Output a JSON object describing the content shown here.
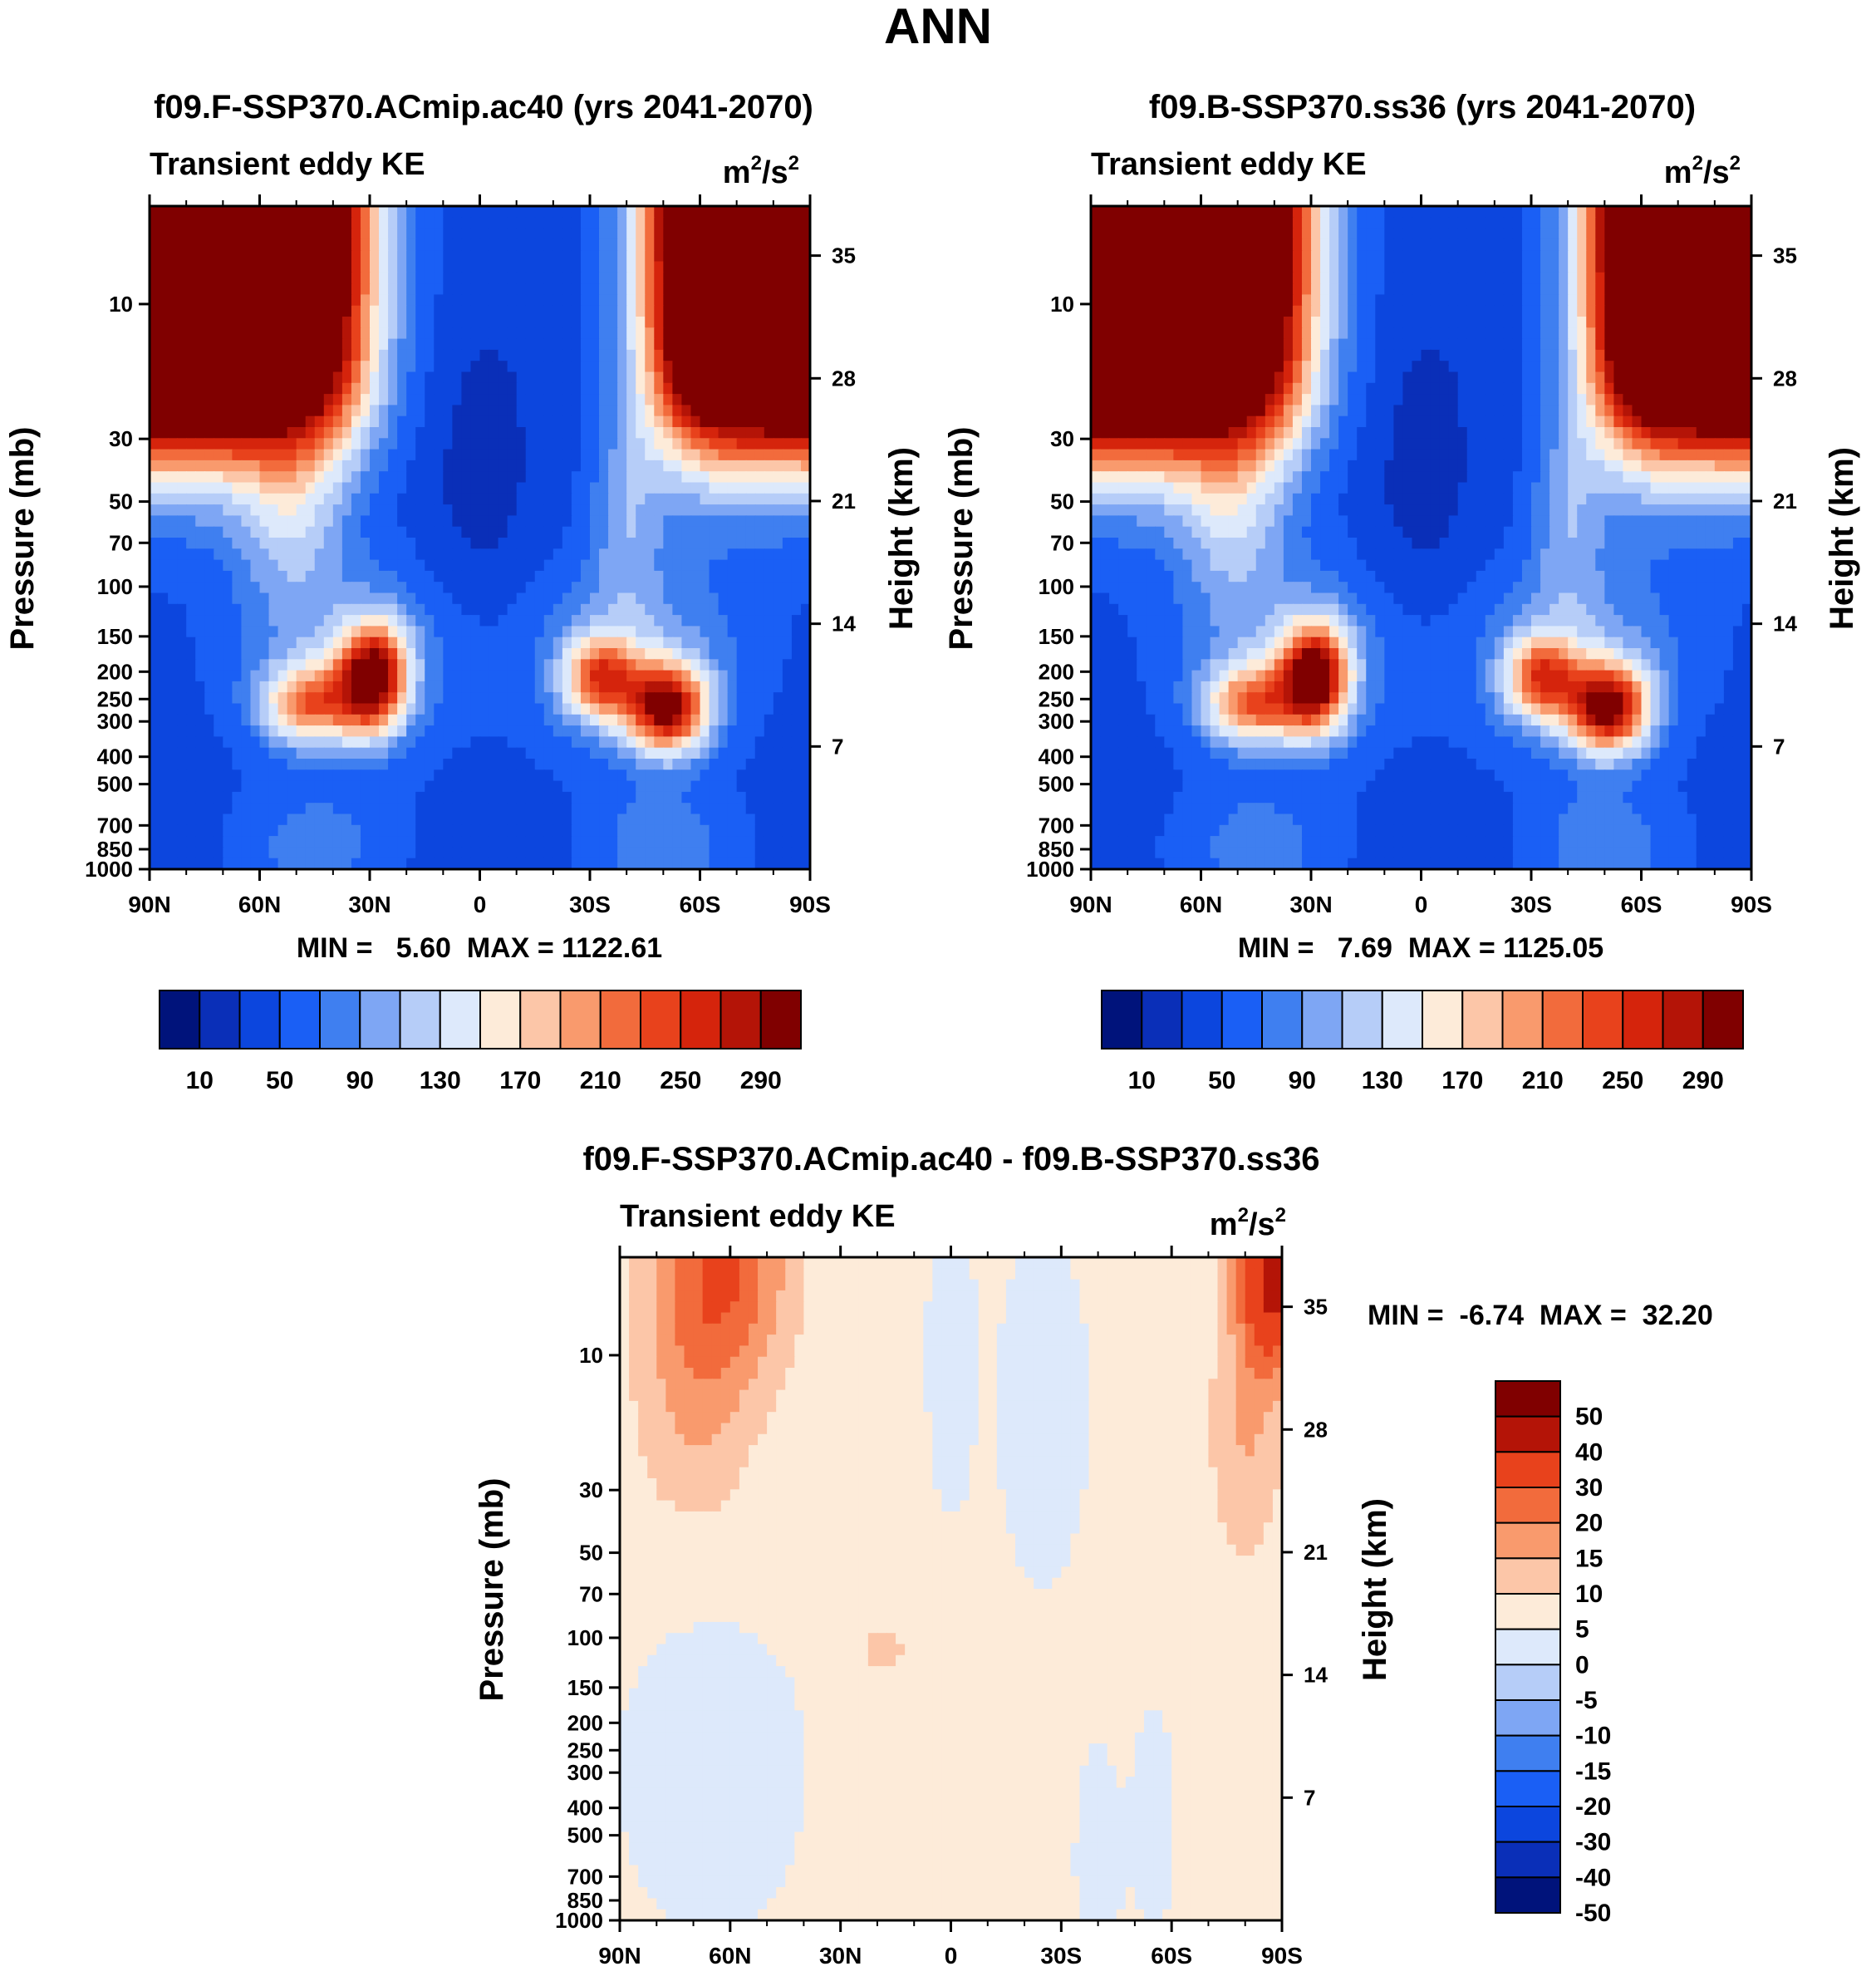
{
  "main_title": "ANN",
  "colors": {
    "seq": [
      "#00137b",
      "#0a2fb8",
      "#0c46de",
      "#1a5ff5",
      "#3f7ff0",
      "#7ea6f4",
      "#b6cdf8",
      "#dde9fb",
      "#fdebd9",
      "#fcc6a8",
      "#f99a6d",
      "#f26b3c",
      "#e8421c",
      "#d5240c",
      "#b41407",
      "#800000"
    ],
    "diff": [
      "#00137b",
      "#0a2fb8",
      "#0c46de",
      "#1a5ff5",
      "#3f7ff0",
      "#7ea6f4",
      "#b6cdf8",
      "#dde9fb",
      "#fdebd9",
      "#fcc6a8",
      "#f99a6d",
      "#f26b3c",
      "#e8421c",
      "#b41407",
      "#800000"
    ]
  },
  "chart_data": [
    {
      "type": "heatmap",
      "id": "left",
      "title": "f09.F-SSP370.ACmip.ac40 (yrs 2041-2070)",
      "left_label": "Transient eddy KE",
      "units_base": "m",
      "units_mid": "/s",
      "units_sup": "2",
      "ylabel": "Pressure (mb)",
      "ylabel_right": "Height (km)",
      "x_ticks": [
        "90N",
        "60N",
        "30N",
        "0",
        "30S",
        "60S",
        "90S"
      ],
      "y_ticks": [
        "10",
        "30",
        "50",
        "70",
        "100",
        "150",
        "200",
        "250",
        "300",
        "400",
        "500",
        "700",
        "850",
        "1000"
      ],
      "yr_ticks": [
        "35",
        "28",
        "21",
        "14",
        "7"
      ],
      "stats": "MIN =   5.60  MAX = 1122.61",
      "colorbar_labels": [
        "10",
        "50",
        "90",
        "130",
        "170",
        "210",
        "250",
        "290"
      ],
      "max": 1122.61
    },
    {
      "type": "heatmap",
      "id": "right",
      "title": "f09.B-SSP370.ss36 (yrs 2041-2070)",
      "left_label": "Transient eddy KE",
      "units_base": "m",
      "units_mid": "/s",
      "units_sup": "2",
      "ylabel": "Pressure (mb)",
      "ylabel_right": "Height (km)",
      "x_ticks": [
        "90N",
        "60N",
        "30N",
        "0",
        "30S",
        "60S",
        "90S"
      ],
      "y_ticks": [
        "10",
        "30",
        "50",
        "70",
        "100",
        "150",
        "200",
        "250",
        "300",
        "400",
        "500",
        "700",
        "850",
        "1000"
      ],
      "yr_ticks": [
        "35",
        "28",
        "21",
        "14",
        "7"
      ],
      "stats": "MIN =   7.69  MAX = 1125.05",
      "colorbar_labels": [
        "10",
        "50",
        "90",
        "130",
        "170",
        "210",
        "250",
        "290"
      ],
      "max": 1125.05
    },
    {
      "type": "heatmap",
      "id": "diff",
      "title": "f09.F-SSP370.ACmip.ac40 - f09.B-SSP370.ss36",
      "left_label": "Transient eddy KE",
      "units_base": "m",
      "units_mid": "/s",
      "units_sup": "2",
      "ylabel": "Pressure (mb)",
      "ylabel_right": "Height (km)",
      "x_ticks": [
        "90N",
        "60N",
        "30N",
        "0",
        "30S",
        "60S",
        "90S"
      ],
      "y_ticks": [
        "10",
        "30",
        "50",
        "70",
        "100",
        "150",
        "200",
        "250",
        "300",
        "400",
        "500",
        "700",
        "850",
        "1000"
      ],
      "yr_ticks": [
        "35",
        "28",
        "21",
        "14",
        "7"
      ],
      "stats": "MIN =  -6.74  MAX =  32.20",
      "colorbar_labels": [
        "50",
        "40",
        "30",
        "20",
        "15",
        "10",
        "5",
        "0",
        "-5",
        "-10",
        "-15",
        "-20",
        "-30",
        "-40",
        "-50"
      ],
      "min": -6.74,
      "max": 32.2
    }
  ]
}
